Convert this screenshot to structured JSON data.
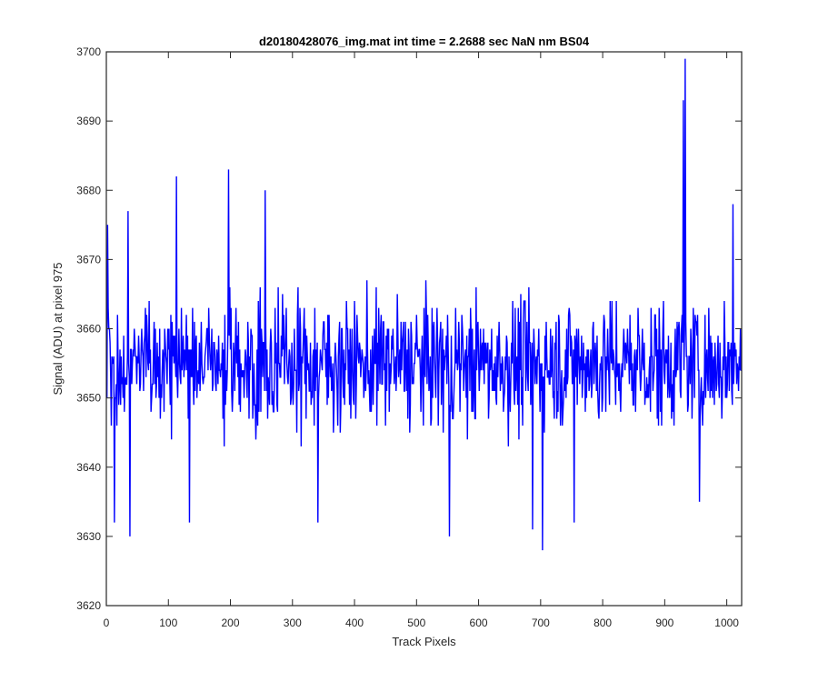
{
  "chart_data": {
    "type": "line",
    "title": "d20180428076_img.mat int time = 2.2688 sec  NaN nm BS04",
    "xlabel": "Track Pixels",
    "ylabel": "Signal (ADU) at pixel 975",
    "xlim": [
      0,
      1024
    ],
    "ylim": [
      3620,
      3700
    ],
    "xticks": [
      0,
      100,
      200,
      300,
      400,
      500,
      600,
      700,
      800,
      900,
      1000
    ],
    "yticks": [
      3620,
      3630,
      3640,
      3650,
      3660,
      3670,
      3680,
      3690,
      3700
    ],
    "grid": false,
    "legend": "none",
    "line_color": "#0000ff",
    "series": [
      {
        "x_start": 1,
        "x_step": 1,
        "points": 1024,
        "mean_approx": 3655,
        "noted_values": [
          {
            "x": 2,
            "y": 3675
          },
          {
            "x": 13,
            "y": 3632
          },
          {
            "x": 35,
            "y": 3677
          },
          {
            "x": 38,
            "y": 3630
          },
          {
            "x": 113,
            "y": 3682
          },
          {
            "x": 134,
            "y": 3632
          },
          {
            "x": 197,
            "y": 3683
          },
          {
            "x": 256,
            "y": 3680
          },
          {
            "x": 341,
            "y": 3632
          },
          {
            "x": 553,
            "y": 3630
          },
          {
            "x": 687,
            "y": 3631
          },
          {
            "x": 703,
            "y": 3628
          },
          {
            "x": 754,
            "y": 3632
          },
          {
            "x": 930,
            "y": 3693
          },
          {
            "x": 933,
            "y": 3699
          },
          {
            "x": 956,
            "y": 3635
          },
          {
            "x": 1010,
            "y": 3678
          }
        ]
      }
    ]
  }
}
